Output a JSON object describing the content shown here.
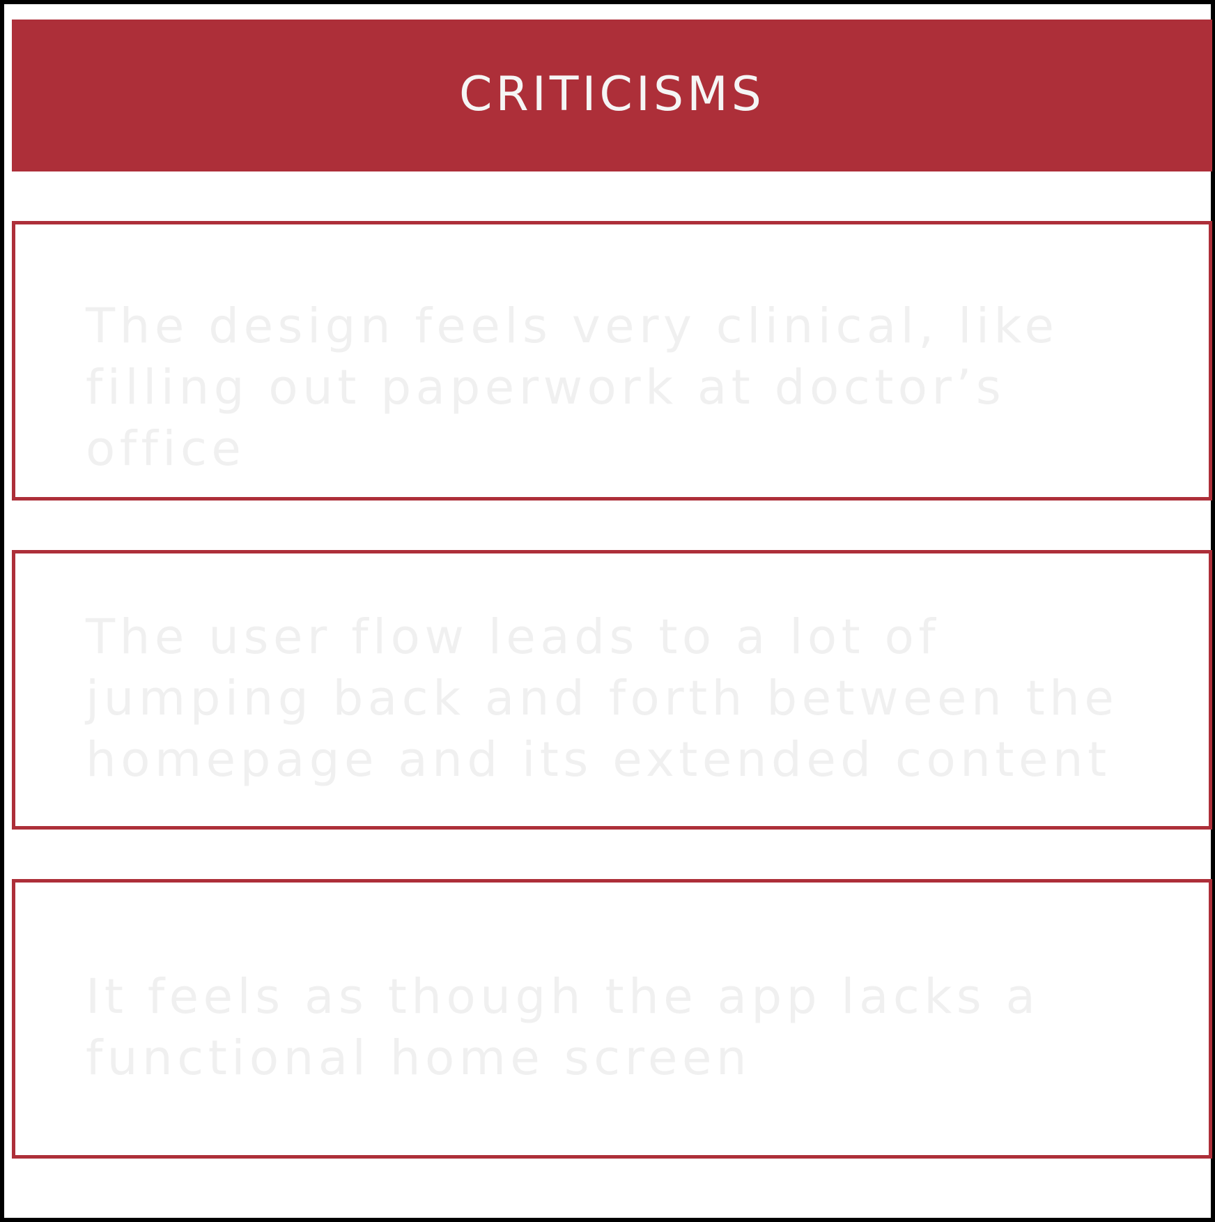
{
  "header": {
    "title": "CRITICISMS",
    "background_color": "#ad2f39",
    "text_color": "#f5f5f5"
  },
  "criticisms": [
    {
      "text": "The design feels very clinical, like filling out paperwork at doctor’s office"
    },
    {
      "text": "The user flow leads to a lot of jumping back and forth between the homepage and its extended content"
    },
    {
      "text": "It feels as though the app lacks a functional home screen"
    }
  ],
  "colors": {
    "accent": "#ad2f39",
    "frame_border": "#000000",
    "card_text": "#f0f0f0"
  }
}
